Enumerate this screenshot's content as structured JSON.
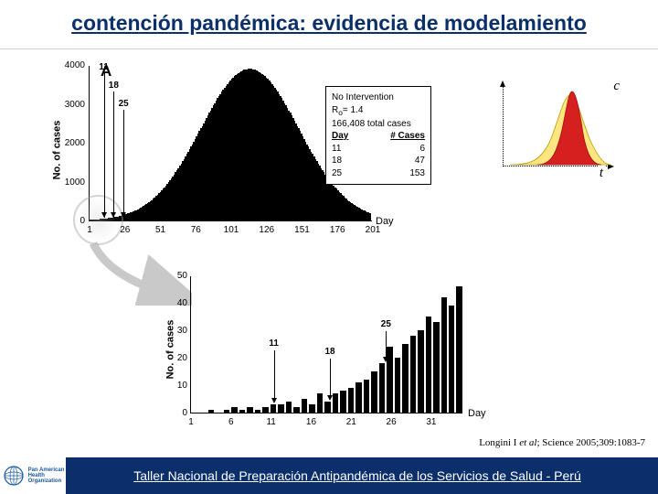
{
  "title": "contención pandémica: evidencia de modelamiento",
  "colors": {
    "title": "#0a2f6b",
    "footer_bg": "#0a2f6b",
    "footer_text": "#ffffff",
    "bar": "#000000",
    "inset_fill_outer": "#ffe680",
    "inset_fill_main": "#d62020",
    "logo_blue": "#1b5aa0",
    "connector": "#bcbcbc"
  },
  "chart_a": {
    "panel_label": "A",
    "ylabel": "No. of cases",
    "xlabel": "Day",
    "ylim": [
      0,
      4000
    ],
    "ytick_step": 1000,
    "yticks": [
      0,
      1000,
      2000,
      3000,
      4000
    ],
    "xlim": [
      1,
      201
    ],
    "xticks": [
      1,
      26,
      51,
      76,
      101,
      126,
      151,
      176,
      201
    ],
    "markers": [
      {
        "label": "11",
        "day": 11
      },
      {
        "label": "18",
        "day": 18
      },
      {
        "label": "25",
        "day": 25
      }
    ],
    "curve_peak_day": 115,
    "curve_peak_value": 3900,
    "curve_spread": 35
  },
  "legend": {
    "line1": "No Intervention",
    "line2_label": "R",
    "line2_sub": "o",
    "line2_rest": "= 1.4",
    "line3": "166,408 total cases",
    "table_header_left": "Day",
    "table_header_right": "# Cases",
    "rows": [
      {
        "day": "11",
        "cases": "6"
      },
      {
        "day": "18",
        "cases": "47"
      },
      {
        "day": "25",
        "cases": "153"
      }
    ]
  },
  "inset": {
    "label_y": "c",
    "label_x": "t"
  },
  "chart_b": {
    "ylabel": "No. of cases",
    "xlabel": "Day",
    "ylim": [
      0,
      50
    ],
    "yticks": [
      0,
      10,
      20,
      30,
      40,
      50
    ],
    "xlim": [
      1,
      35
    ],
    "xticks": [
      1,
      6,
      11,
      16,
      21,
      26,
      31
    ],
    "markers": [
      {
        "label": "11",
        "day": 11
      },
      {
        "label": "18",
        "day": 18
      },
      {
        "label": "25",
        "day": 25
      }
    ],
    "values": [
      0,
      0,
      1,
      0,
      1,
      2,
      1,
      2,
      1,
      2,
      3,
      3,
      4,
      2,
      5,
      3,
      7,
      4,
      7,
      8,
      9,
      11,
      12,
      15,
      18,
      24,
      20,
      25,
      28,
      30,
      35,
      33,
      42,
      39,
      46
    ]
  },
  "citation": {
    "author": "Longini I ",
    "etal": "et al",
    "rest": "; Science 2005;309:1083-7"
  },
  "footer": {
    "org1": "Pan American",
    "org2": "Health",
    "org3": "Organization",
    "text": "Taller Nacional de Preparación Antipandémica de los Servicios de Salud - Perú"
  }
}
